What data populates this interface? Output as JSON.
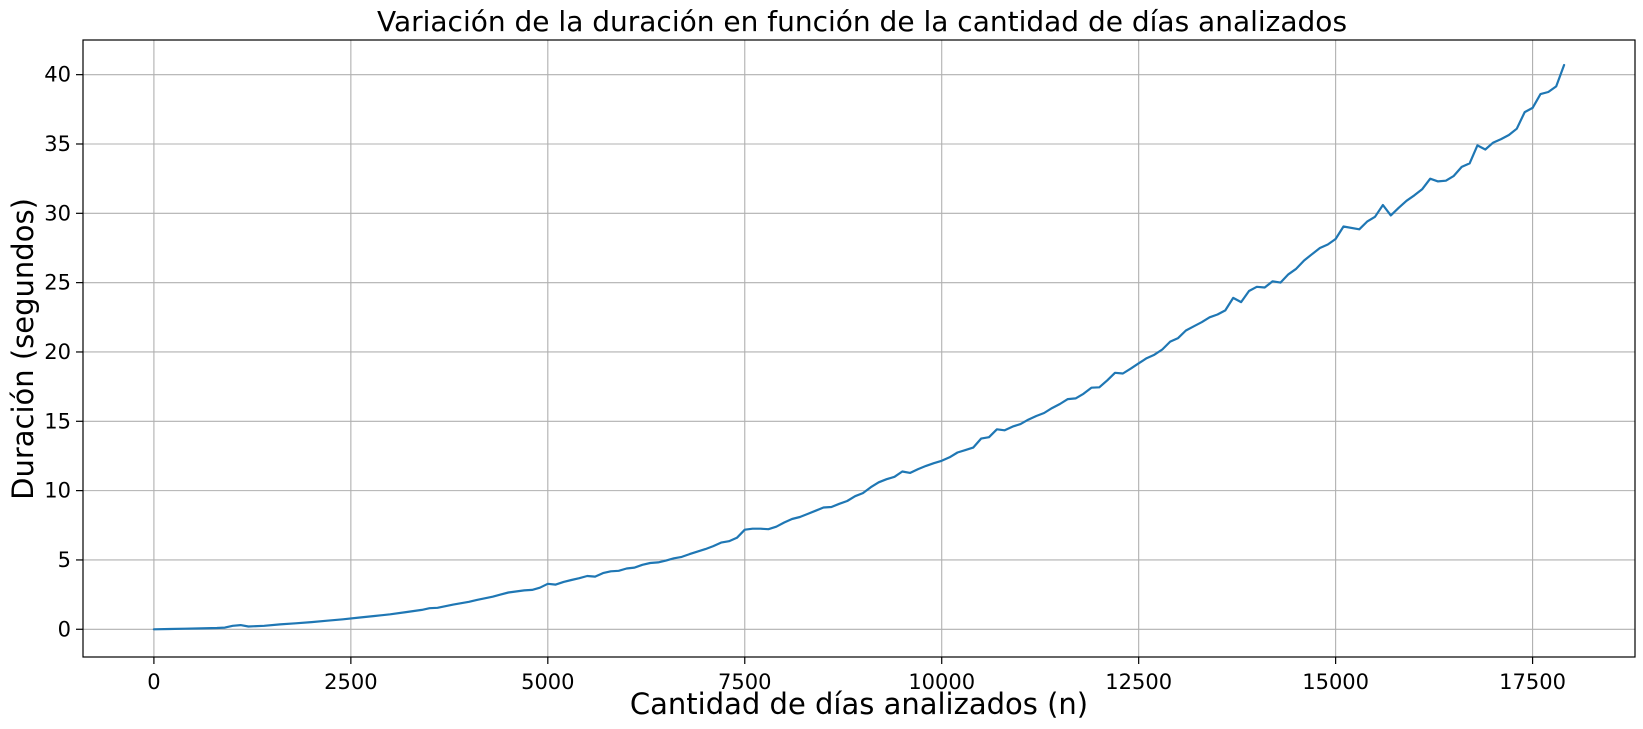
{
  "chart_data": {
    "type": "line",
    "title": "Variación de la duración en función de la cantidad de días analizados",
    "xlabel": "Cantidad de días analizados (n)",
    "ylabel": "Duración (segundos)",
    "xlim": [
      -900,
      18800
    ],
    "ylim": [
      -2.0,
      42.5
    ],
    "xticks": [
      0,
      2500,
      5000,
      7500,
      10000,
      12500,
      15000,
      17500
    ],
    "xtick_labels": [
      "0",
      "2500",
      "5000",
      "7500",
      "10000",
      "12500",
      "15000",
      "17500"
    ],
    "yticks": [
      0,
      5,
      10,
      15,
      20,
      25,
      30,
      35,
      40
    ],
    "ytick_labels": [
      "0",
      "5",
      "10",
      "15",
      "20",
      "25",
      "30",
      "35",
      "40"
    ],
    "grid": true,
    "series": [
      {
        "color": "#1f77b4",
        "x": [
          0,
          200,
          400,
          600,
          800,
          900,
          1000,
          1100,
          1200,
          1400,
          1600,
          1800,
          2000,
          2200,
          2400,
          2600,
          2800,
          3000,
          3200,
          3400,
          3500,
          3600,
          3800,
          4000,
          4100,
          4300,
          4400,
          4500,
          4700,
          4800,
          4900,
          5000,
          5100,
          5200,
          5300,
          5400,
          5500,
          5600,
          5700,
          5800,
          5900,
          6000,
          6100,
          6200,
          6300,
          6400,
          6500,
          6600,
          6700,
          6800,
          6900,
          7000,
          7100,
          7200,
          7300,
          7400,
          7500,
          7600,
          7700,
          7800,
          7900,
          8000,
          8100,
          8200,
          8300,
          8400,
          8500,
          8600,
          8700,
          8800,
          8900,
          9000,
          9100,
          9200,
          9300,
          9400,
          9500,
          9600,
          9700,
          9800,
          9900,
          10000,
          10100,
          10200,
          10300,
          10400,
          10500,
          10600,
          10700,
          10800,
          10900,
          11000,
          11100,
          11200,
          11300,
          11400,
          11500,
          11600,
          11700,
          11800,
          11900,
          12000,
          12100,
          12200,
          12300,
          12400,
          12500,
          12600,
          12700,
          12800,
          12900,
          13000,
          13100,
          13200,
          13300,
          13400,
          13500,
          13600,
          13700,
          13800,
          13900,
          14000,
          14100,
          14200,
          14300,
          14400,
          14500,
          14600,
          14700,
          14800,
          14900,
          15000,
          15100,
          15300,
          15400,
          15500,
          15600,
          15700,
          15800,
          15900,
          16000,
          16100,
          16200,
          16300,
          16400,
          16500,
          16600,
          16700,
          16800,
          16900,
          17000,
          17100,
          17200,
          17300,
          17400,
          17500,
          17600,
          17700,
          17800,
          17900
        ],
        "y": [
          0.0,
          0.02,
          0.04,
          0.06,
          0.09,
          0.12,
          0.25,
          0.3,
          0.2,
          0.25,
          0.35,
          0.43,
          0.52,
          0.62,
          0.72,
          0.84,
          0.96,
          1.08,
          1.24,
          1.4,
          1.52,
          1.55,
          1.78,
          1.98,
          2.12,
          2.35,
          2.5,
          2.65,
          2.8,
          2.84,
          3.0,
          3.28,
          3.22,
          3.42,
          3.55,
          3.68,
          3.84,
          3.8,
          4.05,
          4.18,
          4.22,
          4.38,
          4.45,
          4.65,
          4.78,
          4.82,
          4.95,
          5.12,
          5.22,
          5.42,
          5.6,
          5.78,
          6.0,
          6.25,
          6.35,
          6.6,
          7.18,
          7.25,
          7.25,
          7.22,
          7.4,
          7.7,
          7.95,
          8.1,
          8.32,
          8.55,
          8.78,
          8.82,
          9.05,
          9.25,
          9.6,
          9.82,
          10.25,
          10.6,
          10.82,
          11.0,
          11.38,
          11.28,
          11.55,
          11.78,
          11.98,
          12.15,
          12.4,
          12.75,
          12.92,
          13.1,
          13.75,
          13.85,
          14.42,
          14.35,
          14.62,
          14.8,
          15.12,
          15.38,
          15.6,
          15.95,
          16.25,
          16.6,
          16.65,
          16.98,
          17.42,
          17.45,
          17.95,
          18.5,
          18.45,
          18.8,
          19.18,
          19.55,
          19.8,
          20.18,
          20.75,
          21.0,
          21.55,
          21.85,
          22.15,
          22.5,
          22.7,
          23.0,
          23.9,
          23.6,
          24.4,
          24.7,
          24.65,
          25.1,
          25.0,
          25.6,
          26.0,
          26.6,
          27.05,
          27.5,
          27.75,
          28.15,
          29.05,
          28.85,
          29.4,
          29.75,
          30.6,
          29.85,
          30.4,
          30.9,
          31.3,
          31.75,
          32.5,
          32.3,
          32.35,
          32.7,
          33.35,
          33.6,
          34.9,
          34.6,
          35.1,
          35.35,
          35.65,
          36.1,
          37.3,
          37.6,
          38.6,
          38.75,
          39.15,
          40.7
        ]
      }
    ]
  }
}
